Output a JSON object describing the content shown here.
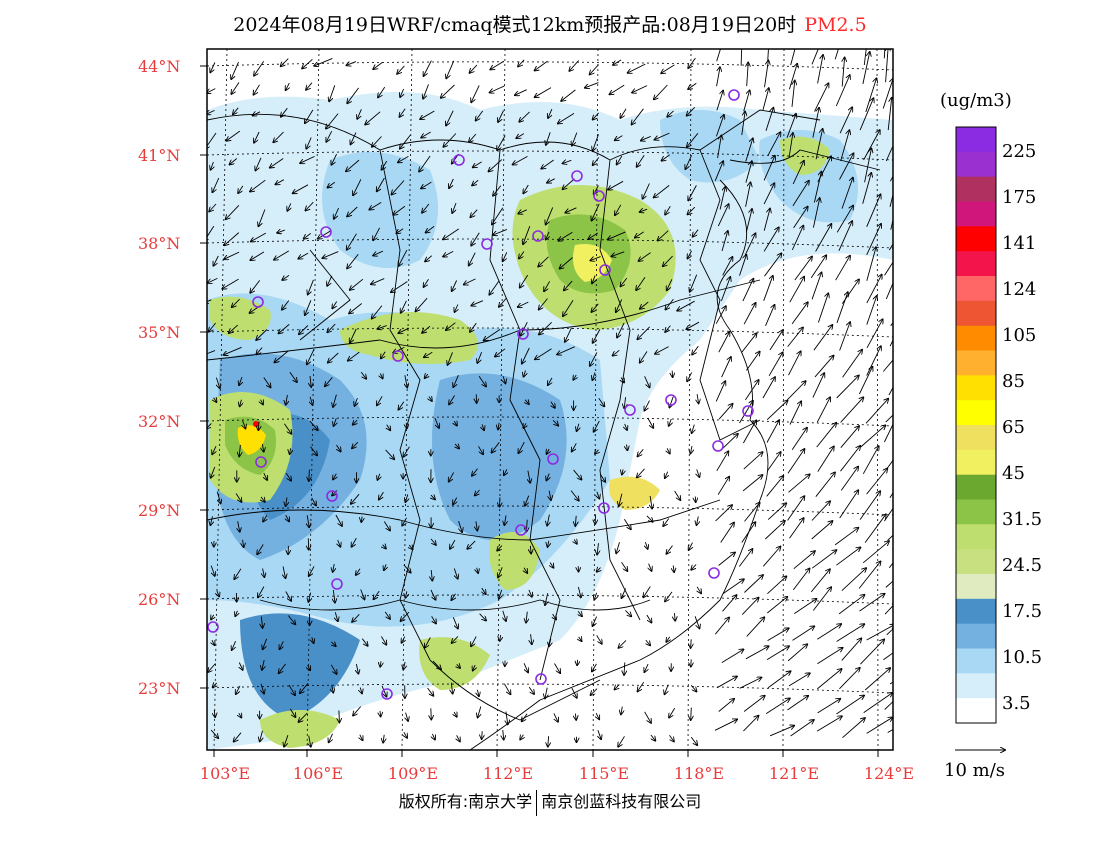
{
  "header": {
    "title": "2024年08月19日WRF/cmaq模式12km预报产品:08月19日20时",
    "pollutant": "PM2.5"
  },
  "map": {
    "lat_labels": [
      "44°N",
      "41°N",
      "38°N",
      "35°N",
      "32°N",
      "29°N",
      "26°N",
      "23°N"
    ],
    "lon_labels": [
      "103°E",
      "106°E",
      "109°E",
      "112°E",
      "115°E",
      "118°E",
      "121°E",
      "124°E"
    ]
  },
  "legend": {
    "unit": "(ug/m3)",
    "levels": [
      "225",
      "175",
      "141",
      "124",
      "105",
      "85",
      "65",
      "45",
      "31.5",
      "24.5",
      "17.5",
      "10.5",
      "3.5"
    ],
    "colors": [
      "#8b2be2",
      "#9b30d0",
      "#b03060",
      "#d0167a",
      "#ff0000",
      "#f4144c",
      "#ff6666",
      "#ee5533",
      "#ff8c00",
      "#ffb02e",
      "#ffe000",
      "#ffff00",
      "#f0e060",
      "#f0f060",
      "#6aa830",
      "#8cc448",
      "#bedf70",
      "#c8e080",
      "#e0ecc0",
      "#4a90c8",
      "#74b0e0",
      "#a8d8f4",
      "#d6eefa",
      "#ffffff"
    ],
    "vector_label": "10 m/s"
  },
  "footer": {
    "copyright": "版权所有:南京大学",
    "company": "南京创蓝科技有限公司"
  }
}
